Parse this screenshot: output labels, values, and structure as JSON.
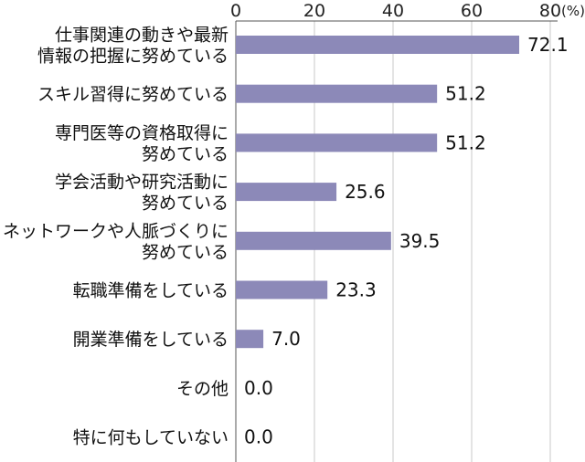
{
  "chart_data": {
    "type": "bar",
    "orientation": "horizontal",
    "unit": "(%)",
    "xlim": [
      0,
      80
    ],
    "ticks": [
      "0",
      "20",
      "40",
      "60",
      "80"
    ],
    "categories": [
      [
        "仕事関連の動きや最新",
        "情報の把握に努めている"
      ],
      [
        "スキル習得に努めている"
      ],
      [
        "専門医等の資格取得に",
        "努めている"
      ],
      [
        "学会活動や研究活動に",
        "努めている"
      ],
      [
        "ネットワークや人脈づくりに",
        "努めている"
      ],
      [
        "転職準備をしている"
      ],
      [
        "開業準備をしている"
      ],
      [
        "その他"
      ],
      [
        "特に何もしていない"
      ]
    ],
    "values": [
      72.1,
      51.2,
      51.2,
      25.6,
      39.5,
      23.3,
      7.0,
      0.0,
      0.0
    ],
    "value_labels": [
      "72.1",
      "51.2",
      "51.2",
      "25.6",
      "39.5",
      "23.3",
      "7.0",
      "0.0",
      "0.0"
    ],
    "bar_color": "#8c89b8",
    "grid": true,
    "grid_color": "#c8c8c8",
    "axis_color": "#555555"
  }
}
